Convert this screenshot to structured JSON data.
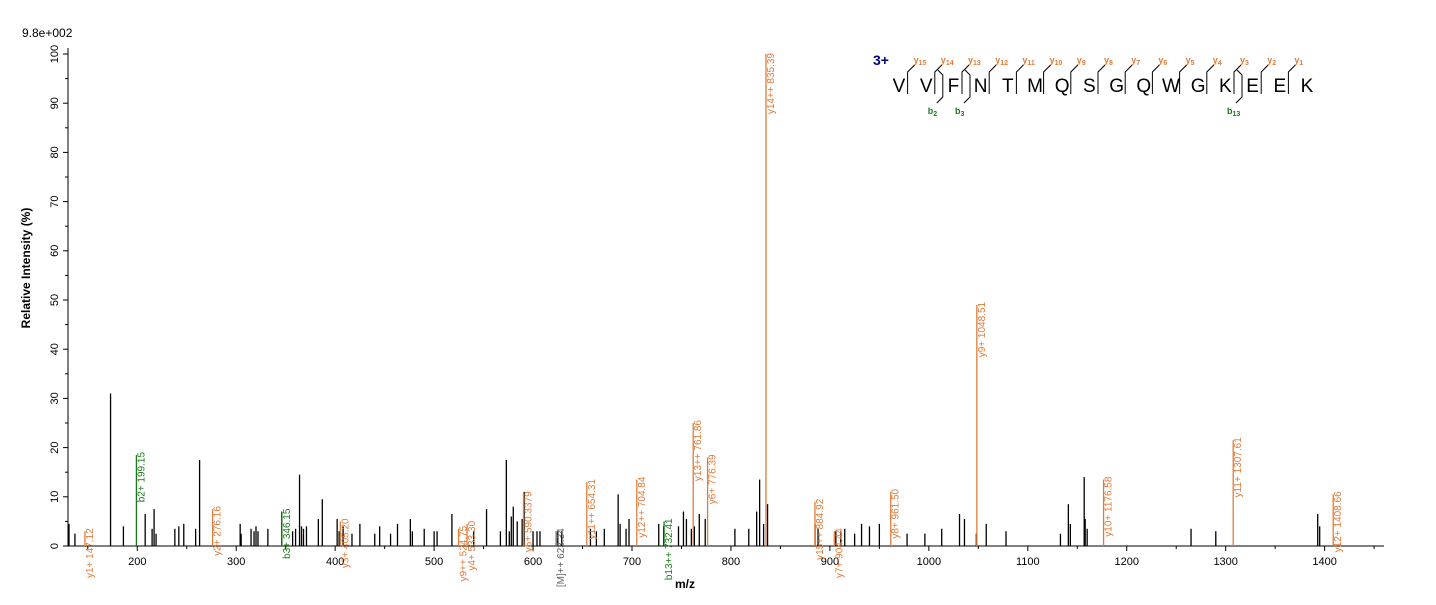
{
  "chart_data": {
    "type": "bar",
    "scale_label": "9.8e+002",
    "xlabel": "m/z",
    "ylabel": "Relative   Intensity (%)",
    "xlim": [
      130,
      1460
    ],
    "ylim": [
      0,
      100
    ],
    "x_ticks": [
      200,
      300,
      400,
      500,
      600,
      700,
      800,
      900,
      1000,
      1100,
      1200,
      1300,
      1400
    ],
    "y_ticks": [
      0,
      10,
      20,
      30,
      40,
      50,
      60,
      70,
      80,
      90,
      100
    ],
    "colors": {
      "y_ion": "#e07b39",
      "b_ion": "#1a7a1a",
      "other": "#000000",
      "precursor": "#606060",
      "charge": "#000080"
    },
    "labeled_peaks": [
      {
        "mz": 147.12,
        "intensity": 3.0,
        "label": "y1+ 147.12",
        "type": "y"
      },
      {
        "mz": 199.15,
        "intensity": 18.5,
        "label": "b2+ 199.15",
        "type": "b"
      },
      {
        "mz": 276.16,
        "intensity": 7.5,
        "label": "y2+ 276.16",
        "type": "y"
      },
      {
        "mz": 346.15,
        "intensity": 7.0,
        "label": "b3+ 346.15",
        "type": "b"
      },
      {
        "mz": 405.2,
        "intensity": 5.0,
        "label": "y3+ 405.20",
        "type": "y"
      },
      {
        "mz": 524.75,
        "intensity": 3.5,
        "label": "y9++ 524.75",
        "type": "y"
      },
      {
        "mz": 533.3,
        "intensity": 4.5,
        "label": "y4+ 533.30",
        "type": "y"
      },
      {
        "mz": 590.3379,
        "intensity": 10.5,
        "label": "y5+ 590.3379",
        "type": "y"
      },
      {
        "mz": 623.34,
        "intensity": 3.0,
        "label": "[M]++ 623.34",
        "type": "precursor"
      },
      {
        "mz": 654.31,
        "intensity": 13.0,
        "label": "y11++ 654.31",
        "type": "y"
      },
      {
        "mz": 704.84,
        "intensity": 13.5,
        "label": "y12++ 704.84",
        "type": "y"
      },
      {
        "mz": 732.41,
        "intensity": 5.0,
        "label": "b13++ 732.41",
        "type": "b"
      },
      {
        "mz": 761.86,
        "intensity": 25.0,
        "label": "y13++ 761.86",
        "type": "y"
      },
      {
        "mz": 776.39,
        "intensity": 18.0,
        "label": "y6+ 776.39",
        "type": "y"
      },
      {
        "mz": 835.39,
        "intensity": 100,
        "label": "y14++ 835.39",
        "type": "y"
      },
      {
        "mz": 884.92,
        "intensity": 9.0,
        "label": "y15++ 884.92",
        "type": "y"
      },
      {
        "mz": 904.44,
        "intensity": 3.0,
        "label": "y7+ 904.44",
        "type": "y"
      },
      {
        "mz": 961.5,
        "intensity": 11.0,
        "label": "y8+ 961.50",
        "type": "y"
      },
      {
        "mz": 1048.51,
        "intensity": 49.0,
        "label": "y9+ 1048.51",
        "type": "y"
      },
      {
        "mz": 1176.58,
        "intensity": 13.5,
        "label": "y10+ 1176.58",
        "type": "y"
      },
      {
        "mz": 1307.61,
        "intensity": 21.5,
        "label": "y11+ 1307.61",
        "type": "y"
      },
      {
        "mz": 1408.66,
        "intensity": 10.5,
        "label": "y12+ 1408.66",
        "type": "y"
      }
    ],
    "unlabeled_peaks": [
      [
        131,
        4.5
      ],
      [
        137,
        2.5
      ],
      [
        173,
        31
      ],
      [
        186,
        4
      ],
      [
        208,
        6.5
      ],
      [
        215,
        3.5
      ],
      [
        217,
        7.5
      ],
      [
        219,
        2.5
      ],
      [
        238,
        3.5
      ],
      [
        242,
        4
      ],
      [
        247,
        4.5
      ],
      [
        259,
        3.5
      ],
      [
        263,
        17.5
      ],
      [
        304,
        4.5
      ],
      [
        305,
        2.5
      ],
      [
        315,
        3.5
      ],
      [
        318,
        3
      ],
      [
        320,
        4
      ],
      [
        322,
        3
      ],
      [
        332,
        3.5
      ],
      [
        346,
        7.0
      ],
      [
        357,
        3
      ],
      [
        360,
        3.5
      ],
      [
        364,
        14.5
      ],
      [
        366,
        4
      ],
      [
        368,
        3.5
      ],
      [
        371,
        4
      ],
      [
        383,
        5.5
      ],
      [
        387,
        9.5
      ],
      [
        402,
        5.5
      ],
      [
        404,
        3
      ],
      [
        408,
        4
      ],
      [
        417,
        2.5
      ],
      [
        425,
        4.5
      ],
      [
        440,
        2.5
      ],
      [
        445,
        4
      ],
      [
        456,
        2.5
      ],
      [
        463,
        4.5
      ],
      [
        476,
        5.5
      ],
      [
        478,
        3
      ],
      [
        490,
        3.5
      ],
      [
        500,
        3
      ],
      [
        503,
        3
      ],
      [
        518,
        6.5
      ],
      [
        540,
        3
      ],
      [
        553,
        7.5
      ],
      [
        567,
        3
      ],
      [
        573,
        17.5
      ],
      [
        576,
        3
      ],
      [
        578,
        6
      ],
      [
        580,
        8
      ],
      [
        584,
        5
      ],
      [
        589,
        5.5
      ],
      [
        591,
        11
      ],
      [
        600,
        3
      ],
      [
        604,
        3
      ],
      [
        607,
        3
      ],
      [
        625,
        3
      ],
      [
        629,
        3
      ],
      [
        658,
        3.5
      ],
      [
        664,
        3
      ],
      [
        672,
        3.5
      ],
      [
        686,
        10.5
      ],
      [
        688,
        4.5
      ],
      [
        694,
        3.5
      ],
      [
        697,
        5.5
      ],
      [
        727,
        4.5
      ],
      [
        732,
        4
      ],
      [
        747,
        4
      ],
      [
        752,
        7
      ],
      [
        755,
        5.5
      ],
      [
        760,
        3.5
      ],
      [
        763,
        4
      ],
      [
        768,
        6.5
      ],
      [
        774,
        5.5
      ],
      [
        804,
        3.5
      ],
      [
        818,
        3.5
      ],
      [
        826,
        7
      ],
      [
        829,
        13.5
      ],
      [
        833,
        4.5
      ],
      [
        837,
        8.5
      ],
      [
        885,
        4.5
      ],
      [
        888,
        3.5
      ],
      [
        906,
        3
      ],
      [
        911,
        3
      ],
      [
        915,
        3.5
      ],
      [
        925,
        2.5
      ],
      [
        932,
        4.5
      ],
      [
        940,
        4
      ],
      [
        950,
        4.5
      ],
      [
        978,
        2.5
      ],
      [
        996,
        2.5
      ],
      [
        1013,
        3.5
      ],
      [
        1031,
        6.5
      ],
      [
        1036,
        5.5
      ],
      [
        1048,
        2.5
      ],
      [
        1058,
        4.5
      ],
      [
        1078,
        3
      ],
      [
        1133,
        2.5
      ],
      [
        1141,
        8.5
      ],
      [
        1143,
        4.5
      ],
      [
        1157,
        14
      ],
      [
        1158,
        5.5
      ],
      [
        1160,
        3.5
      ],
      [
        1265,
        3.5
      ],
      [
        1290,
        3
      ],
      [
        1393,
        6.5
      ],
      [
        1395,
        4
      ]
    ],
    "sequence": {
      "charge_label": "3+",
      "letters": [
        "V",
        "V",
        "F",
        "N",
        "T",
        "M",
        "Q",
        "S",
        "G",
        "Q",
        "W",
        "G",
        "K",
        "E",
        "E",
        "K"
      ],
      "y_ions": [
        {
          "ion": "y",
          "num": "15",
          "after": 0
        },
        {
          "ion": "y",
          "num": "14",
          "after": 1
        },
        {
          "ion": "y",
          "num": "13",
          "after": 2
        },
        {
          "ion": "y",
          "num": "12",
          "after": 3
        },
        {
          "ion": "y",
          "num": "11",
          "after": 4
        },
        {
          "ion": "y",
          "num": "10",
          "after": 5
        },
        {
          "ion": "y",
          "num": "9",
          "after": 6
        },
        {
          "ion": "y",
          "num": "8",
          "after": 7
        },
        {
          "ion": "y",
          "num": "7",
          "after": 8
        },
        {
          "ion": "y",
          "num": "6",
          "after": 9
        },
        {
          "ion": "y",
          "num": "5",
          "after": 10
        },
        {
          "ion": "y",
          "num": "4",
          "after": 11
        },
        {
          "ion": "y",
          "num": "3",
          "after": 12
        },
        {
          "ion": "y",
          "num": "2",
          "after": 13
        },
        {
          "ion": "y",
          "num": "1",
          "after": 14
        }
      ],
      "b_ions": [
        {
          "ion": "b",
          "num": "2",
          "after": 1
        },
        {
          "ion": "b",
          "num": "3",
          "after": 2
        },
        {
          "ion": "b",
          "num": "13",
          "after": 12
        }
      ]
    }
  }
}
